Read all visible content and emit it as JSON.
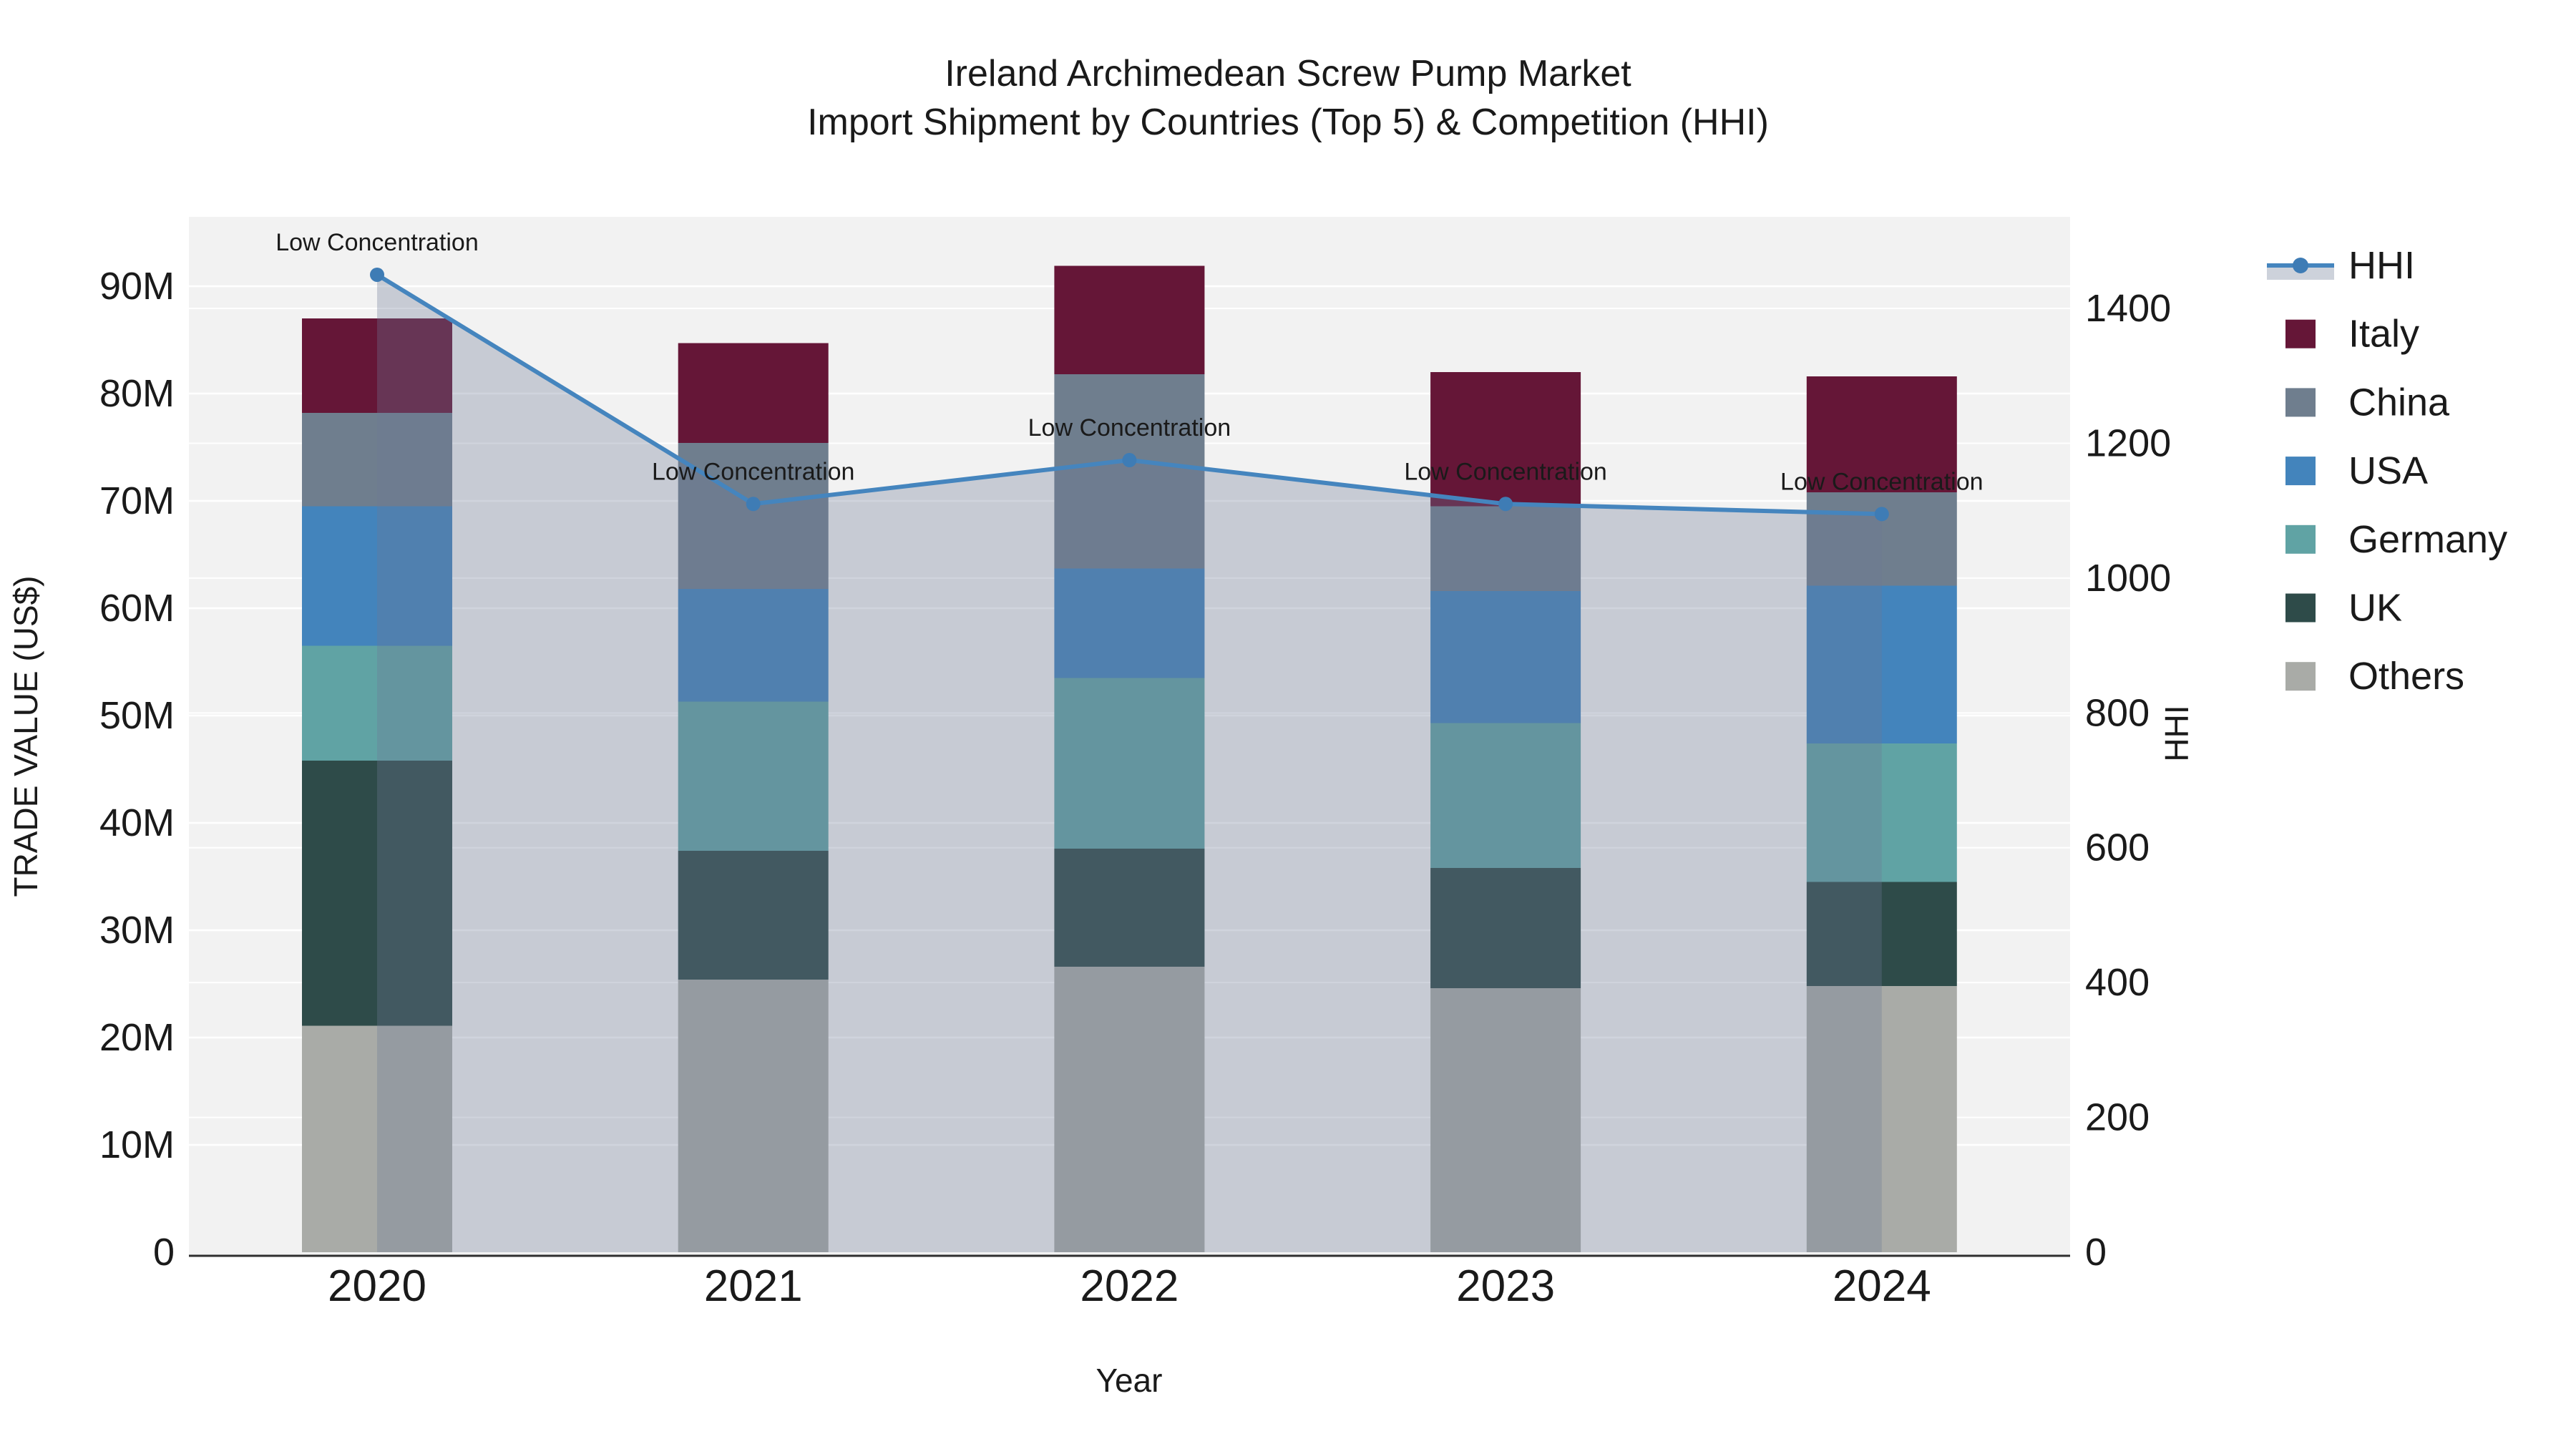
{
  "chart_data": {
    "type": "bar",
    "stacked": true,
    "orientation": "vertical",
    "title_line1": "Ireland Archimedean Screw Pump Market",
    "title_line2": "Import Shipment by Countries (Top 5) & Competition (HHI)",
    "xlabel": "Year",
    "ylabel_left": "TRADE VALUE (US$)",
    "ylabel_right": "HHI",
    "unit_left": "million US$",
    "categories": [
      "2020",
      "2021",
      "2022",
      "2023",
      "2024"
    ],
    "series": [
      {
        "name": "Others",
        "color": "#A9ABA7",
        "values": [
          21.1,
          25.4,
          26.6,
          24.6,
          24.8
        ]
      },
      {
        "name": "UK",
        "color": "#2E4B49",
        "values": [
          24.7,
          12.0,
          11.0,
          11.2,
          9.7
        ]
      },
      {
        "name": "Germany",
        "color": "#60A3A4",
        "values": [
          10.7,
          13.9,
          15.9,
          13.5,
          12.9
        ]
      },
      {
        "name": "USA",
        "color": "#4384BC",
        "values": [
          13.0,
          10.5,
          10.2,
          12.3,
          14.7
        ]
      },
      {
        "name": "China",
        "color": "#6F7E8E",
        "values": [
          8.7,
          13.6,
          18.1,
          7.9,
          8.7
        ]
      },
      {
        "name": "Italy",
        "color": "#651637",
        "values": [
          8.8,
          9.3,
          10.1,
          12.5,
          10.8
        ]
      }
    ],
    "bar_totals_musd": [
      87.0,
      84.7,
      91.9,
      82.0,
      81.6
    ],
    "line_series": {
      "name": "HHI",
      "axis": "right",
      "color": "#4585BE",
      "marker_color": "#3E7CB5",
      "area_fill_color": "rgba(108,122,148,0.32)",
      "values": [
        1450,
        1110,
        1175,
        1110,
        1095
      ]
    },
    "annotations": [
      {
        "text": "Low Concentration",
        "category": "2020"
      },
      {
        "text": "Low Concentration",
        "category": "2021"
      },
      {
        "text": "Low Concentration",
        "category": "2022"
      },
      {
        "text": "Low Concentration",
        "category": "2023"
      },
      {
        "text": "Low Concentration",
        "category": "2024"
      }
    ],
    "y_left_ticks": [
      "0",
      "10M",
      "20M",
      "30M",
      "40M",
      "50M",
      "60M",
      "70M",
      "80M",
      "90M"
    ],
    "y_left_tick_values": [
      0,
      10,
      20,
      30,
      40,
      50,
      60,
      70,
      80,
      90
    ],
    "y_right_ticks": [
      "0",
      "200",
      "400",
      "600",
      "800",
      "1000",
      "1200",
      "1400"
    ],
    "y_right_tick_values": [
      0,
      200,
      400,
      600,
      800,
      1000,
      1200,
      1400
    ],
    "legend_order": [
      "HHI",
      "Italy",
      "China",
      "USA",
      "Germany",
      "UK",
      "Others"
    ],
    "legend_position": "right",
    "grid": true,
    "plot_bg_color": "#F2F2F2",
    "grid_color": "#FFFFFF",
    "axis_line_color": "#2F2F2F",
    "text_color": "#1A1A1A",
    "legend_hhi_band_color": "#CDD2DB"
  }
}
